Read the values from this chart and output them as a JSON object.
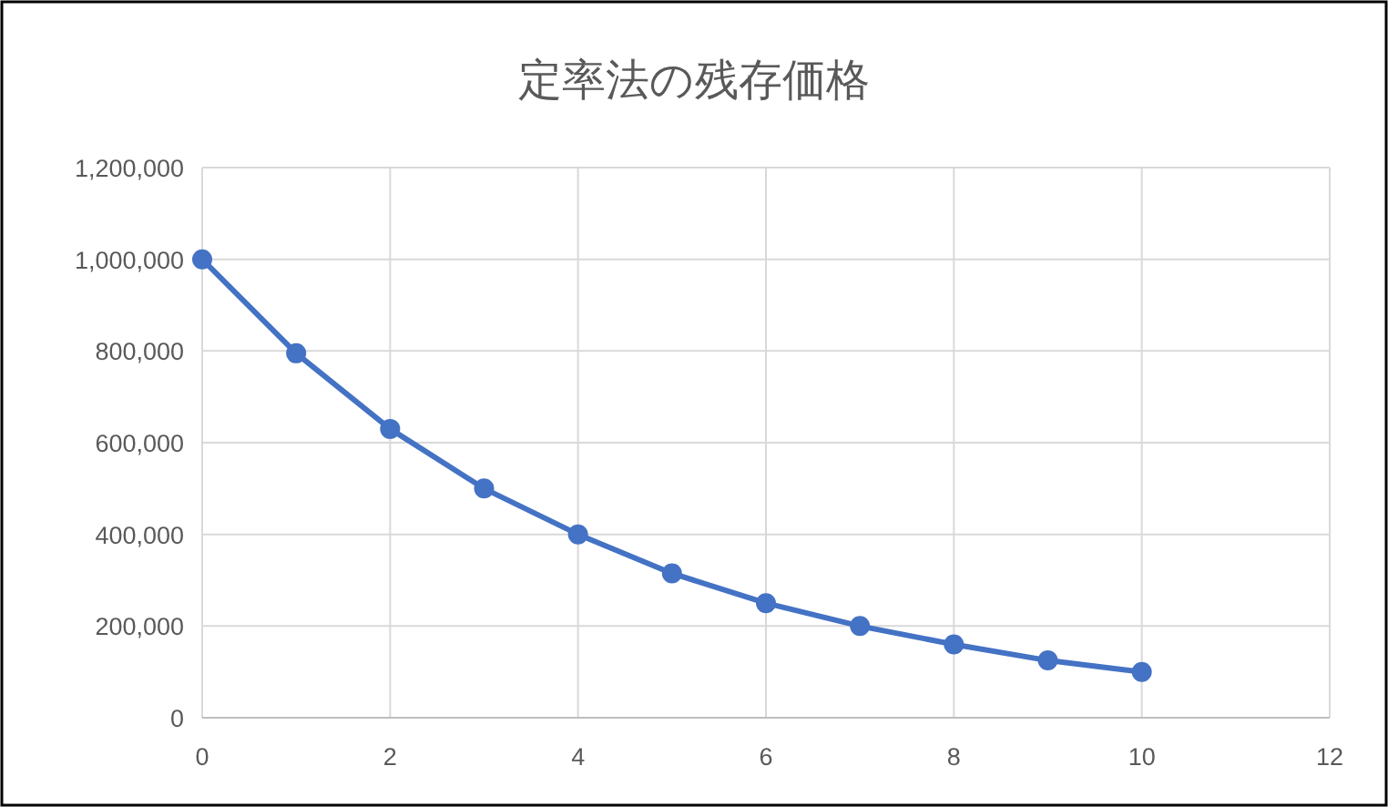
{
  "chart_data": {
    "type": "line",
    "title": "定率法の残存価格",
    "x": [
      0,
      1,
      2,
      3,
      4,
      5,
      6,
      7,
      8,
      9,
      10
    ],
    "series": [
      {
        "color": "#4472c4",
        "values": [
          1000000,
          795000,
          630000,
          500000,
          400000,
          315000,
          250000,
          200000,
          160000,
          125000,
          100000
        ]
      }
    ],
    "xlim": [
      0,
      12
    ],
    "xticks": [
      0,
      2,
      4,
      6,
      8,
      10,
      12
    ],
    "ylim": [
      0,
      1200000
    ],
    "yticks": [
      {
        "value": 0,
        "label": "0"
      },
      {
        "value": 200000,
        "label": "200,000"
      },
      {
        "value": 400000,
        "label": "400,000"
      },
      {
        "value": 600000,
        "label": "600,000"
      },
      {
        "value": 800000,
        "label": "800,000"
      },
      {
        "value": 1000000,
        "label": "1,000,000"
      },
      {
        "value": 1200000,
        "label": "1,200,000"
      }
    ],
    "grid": true,
    "marker": "circle",
    "line_style": "solid"
  }
}
